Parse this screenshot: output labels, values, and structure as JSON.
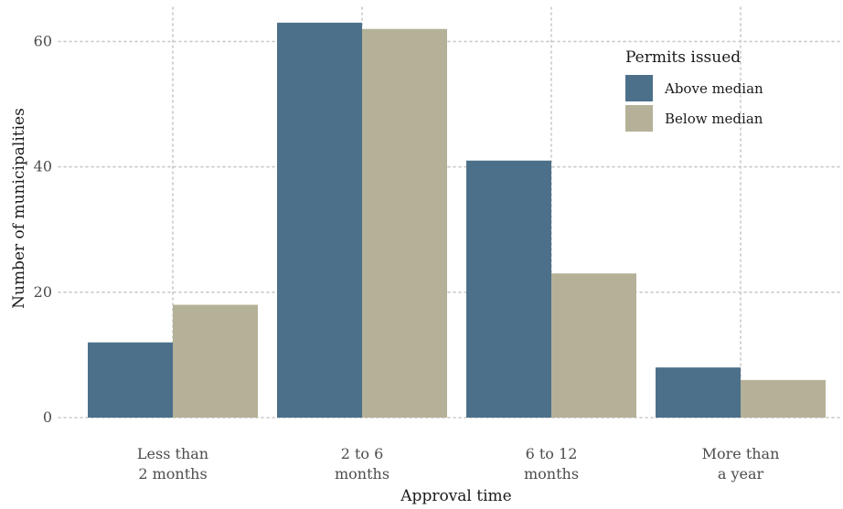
{
  "chart_data": {
    "type": "bar",
    "title": "",
    "xlabel": "Approval time",
    "ylabel": "Number of municipalities",
    "categories": [
      [
        "Less than",
        "2 months"
      ],
      [
        "2 to 6",
        "months"
      ],
      [
        "6 to 12",
        "months"
      ],
      [
        "More than",
        "a year"
      ]
    ],
    "series": [
      {
        "name": "Above median",
        "values": [
          12,
          63,
          41,
          8
        ],
        "color": "#4c708a"
      },
      {
        "name": "Below median",
        "values": [
          18,
          62,
          23,
          6
        ],
        "color": "#b5b198"
      }
    ],
    "ylim": [
      0,
      65
    ],
    "yticks": [
      0,
      20,
      40,
      60
    ],
    "grid": true,
    "legend": {
      "title": "Permits issued",
      "position": "top-right",
      "items": [
        "Above median",
        "Below median"
      ]
    }
  }
}
